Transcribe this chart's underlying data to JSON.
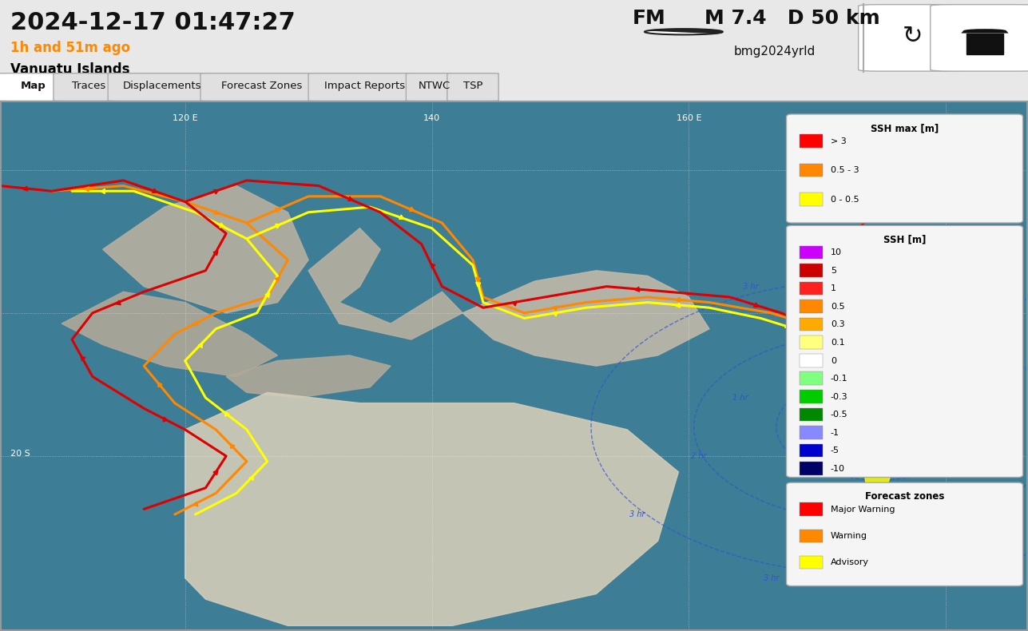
{
  "title_date": "2024-12-17 01:47:27",
  "subtitle_time": "1h and 51m ago",
  "subtitle_loc": "Vanuatu Islands",
  "header_right": "FM  M 7.4  D 50 km",
  "header_right2": "bmg2024yrld",
  "tabs": [
    "Map",
    "Traces",
    "Displacements",
    "Forecast Zones",
    "Impact Reports",
    "NTWC",
    "TSP"
  ],
  "active_tab": "Map",
  "bg_color": "#e8e8e8",
  "header_bg": "#e8e8e8",
  "tab_bar_bg": "#f0f0f0",
  "map_bg": "#5ba0b0",
  "legend1_title": "SSH max [m]",
  "legend1_items": [
    {
      "color": "#ff0000",
      "label": "> 3"
    },
    {
      "color": "#ff8800",
      "label": "0.5 - 3"
    },
    {
      "color": "#ffff00",
      "label": "0 - 0.5"
    }
  ],
  "legend2_title": "SSH [m]",
  "legend2_items": [
    {
      "color": "#cc00ff",
      "label": "10"
    },
    {
      "color": "#cc0000",
      "label": "5"
    },
    {
      "color": "#ff2020",
      "label": "1"
    },
    {
      "color": "#ff8800",
      "label": "0.5"
    },
    {
      "color": "#ffaa00",
      "label": "0.3"
    },
    {
      "color": "#ffff80",
      "label": "0.1"
    },
    {
      "color": "#ffffff",
      "label": "0"
    },
    {
      "color": "#80ff80",
      "label": "-0.1"
    },
    {
      "color": "#00cc00",
      "label": "-0.3"
    },
    {
      "color": "#008800",
      "label": "-0.5"
    },
    {
      "color": "#8888ff",
      "label": "-1"
    },
    {
      "color": "#0000cc",
      "label": "-5"
    },
    {
      "color": "#000066",
      "label": "-10"
    }
  ],
  "legend3_title": "Forecast zones",
  "legend3_items": [
    {
      "color": "#ff0000",
      "label": "Major Warning"
    },
    {
      "color": "#ff8800",
      "label": "Warning"
    },
    {
      "color": "#ffff00",
      "label": "Advisory"
    }
  ],
  "subtitle_color": "#ff8800",
  "loc_color": "#000000"
}
